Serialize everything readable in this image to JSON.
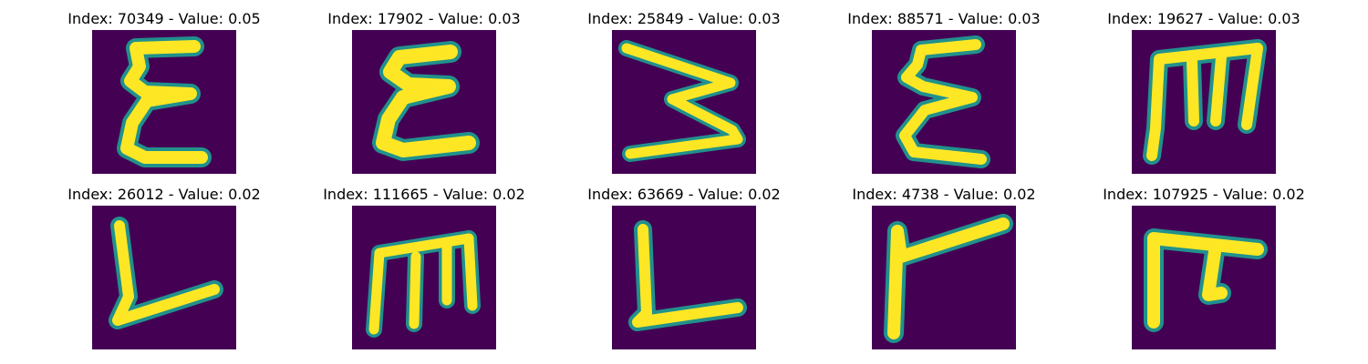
{
  "colors": {
    "background": "#440154",
    "stroke_edge": "#21918c",
    "stroke_core": "#fde725"
  },
  "panels": [
    {
      "title": "Index: 70349 - Value: 0.05",
      "glyph": "epsilon"
    },
    {
      "title": "Index: 17902 - Value: 0.03",
      "glyph": "epsilon-wide"
    },
    {
      "title": "Index: 25849 - Value: 0.03",
      "glyph": "reverse-three"
    },
    {
      "title": "Index: 88571 - Value: 0.03",
      "glyph": "epsilon-narrow"
    },
    {
      "title": "Index: 19627 - Value: 0.03",
      "glyph": "m-shape"
    },
    {
      "title": "Index: 26012 - Value: 0.02",
      "glyph": "L-slanted"
    },
    {
      "title": "Index: 111665 - Value: 0.02",
      "glyph": "m-shape-rounded"
    },
    {
      "title": "Index: 63669 - Value: 0.02",
      "glyph": "L-shape"
    },
    {
      "title": "Index: 4738 - Value: 0.02",
      "glyph": "r-shape"
    },
    {
      "title": "Index: 107925 - Value: 0.02",
      "glyph": "pi-shape"
    }
  ]
}
